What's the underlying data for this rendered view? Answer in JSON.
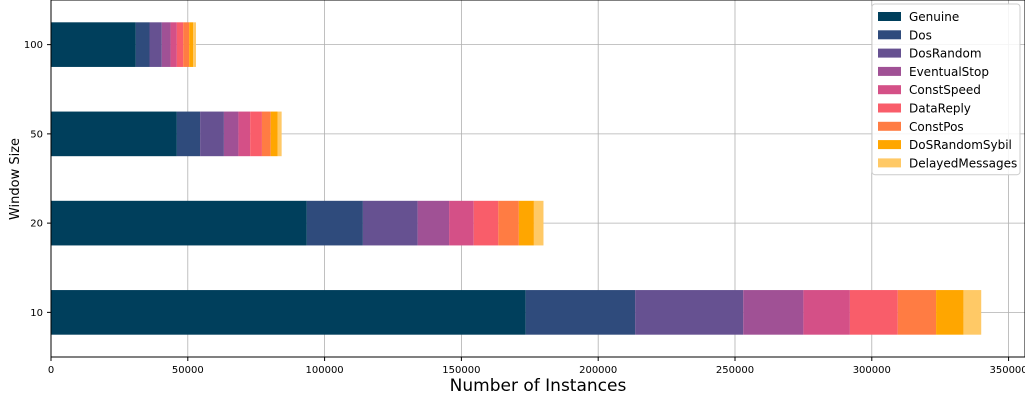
{
  "chart_data": {
    "type": "bar",
    "orientation": "horizontal",
    "stacked": true,
    "title": "",
    "xlabel": "Number of Instances",
    "ylabel": "Window Size",
    "xlim": [
      0,
      356000
    ],
    "xticks": [
      0,
      50000,
      100000,
      150000,
      200000,
      250000,
      300000,
      350000
    ],
    "categories": [
      "10",
      "20",
      "50",
      "100"
    ],
    "grid": true,
    "legend_position": "top-right",
    "series": [
      {
        "name": "Genuine",
        "color": "#003f5c",
        "values": [
          173500,
          93500,
          46000,
          31000
        ]
      },
      {
        "name": "Dos",
        "color": "#2f4b7c",
        "values": [
          40000,
          20500,
          8500,
          5000
        ]
      },
      {
        "name": "DosRandom",
        "color": "#665191",
        "values": [
          39500,
          20000,
          8700,
          4500
        ]
      },
      {
        "name": "EventualStop",
        "color": "#a05195",
        "values": [
          22000,
          11500,
          5300,
          3200
        ]
      },
      {
        "name": "ConstSpeed",
        "color": "#d45087",
        "values": [
          17000,
          9000,
          4300,
          2300
        ]
      },
      {
        "name": "DataReply",
        "color": "#f95d6a",
        "values": [
          17500,
          9000,
          4300,
          2300
        ]
      },
      {
        "name": "ConstPos",
        "color": "#ff7c43",
        "values": [
          14000,
          7500,
          3200,
          2200
        ]
      },
      {
        "name": "DoSRandomSybil",
        "color": "#ffa600",
        "values": [
          10000,
          5500,
          2500,
          1500
        ]
      },
      {
        "name": "DelayedMessages",
        "color": "#ffc966",
        "values": [
          6500,
          3500,
          1500,
          1000
        ]
      }
    ]
  }
}
